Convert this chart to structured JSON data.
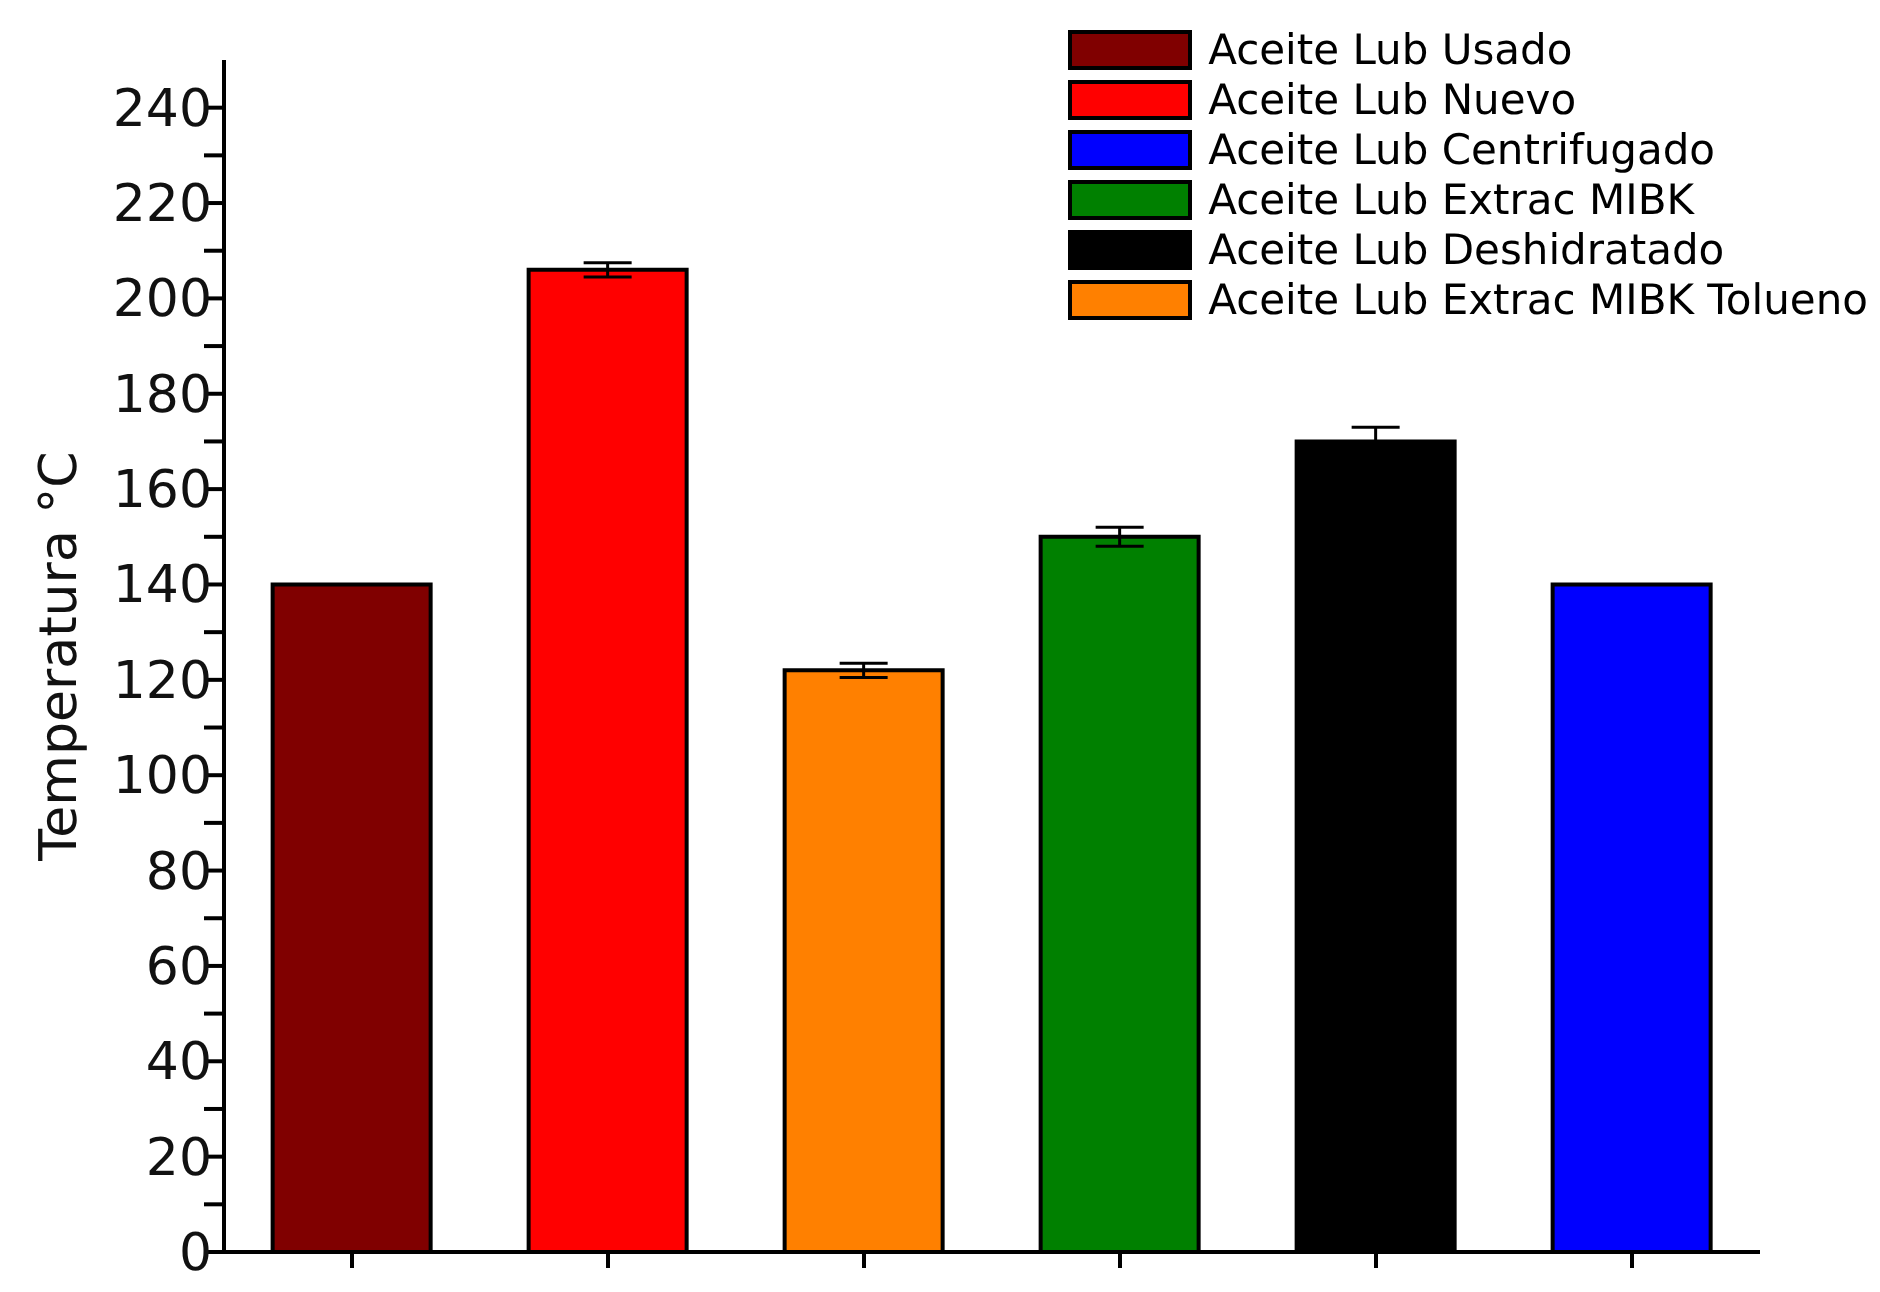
{
  "chart_data": {
    "type": "bar",
    "ylabel": "Temperatura °C",
    "categories": [
      null,
      null,
      null,
      null,
      null,
      null
    ],
    "stacked": true,
    "legend": "top right",
    "ylim": [
      0,
      250
    ],
    "yticks": [
      0,
      {
        "value": 10,
        "label": null
      },
      20,
      {
        "value": 30,
        "label": null
      },
      40,
      {
        "value": 50,
        "label": null
      },
      60,
      {
        "value": 70,
        "label": null
      },
      80,
      {
        "value": 90,
        "label": null
      },
      100,
      {
        "value": 110,
        "label": null
      },
      120,
      {
        "value": 130,
        "label": null
      },
      140,
      {
        "value": 150,
        "label": null
      },
      160,
      {
        "value": 170,
        "label": null
      },
      180,
      {
        "value": 190,
        "label": null
      },
      200,
      {
        "value": 210,
        "label": null
      },
      220,
      {
        "value": 230,
        "label": null
      },
      240
    ],
    "series": [
      {
        "name": "Aceite Lub Usado",
        "color": "#800000",
        "values": [
          140,
          null,
          null,
          null,
          null,
          null
        ]
      },
      {
        "name": "Aceite Lub Nuevo",
        "color": "#ff0000",
        "values": [
          null,
          206,
          null,
          null,
          null,
          null
        ],
        "errors": [
          null,
          1.5,
          null,
          null,
          null,
          null
        ]
      },
      {
        "name": "Aceite Lub Centrifugado",
        "color": "#0000ff",
        "values": [
          null,
          null,
          null,
          null,
          null,
          140
        ]
      },
      {
        "name": "Aceite Lub Extrac MIBK",
        "color": "#008000",
        "values": [
          null,
          null,
          null,
          150,
          null,
          null
        ],
        "errors": [
          null,
          null,
          null,
          2,
          null,
          null
        ]
      },
      {
        "name": "Aceite Lub Deshidratado",
        "color": "#000000",
        "values": [
          null,
          null,
          null,
          null,
          170,
          null
        ],
        "errors": [
          null,
          null,
          null,
          null,
          3,
          null
        ]
      },
      {
        "name": "Aceite Lub Extrac MIBK Tolueno",
        "color": "#ff8000",
        "values": [
          null,
          null,
          122,
          null,
          null,
          null
        ],
        "errors": [
          null,
          null,
          1.5,
          null,
          null,
          null
        ]
      }
    ]
  }
}
